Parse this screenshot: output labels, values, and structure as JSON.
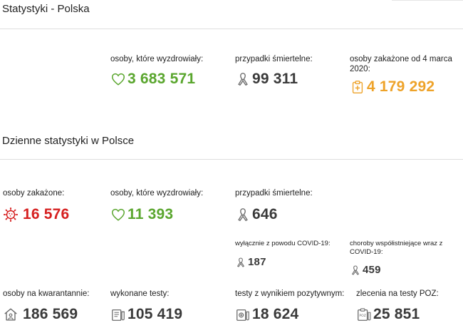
{
  "colors": {
    "green": "#5aa62e",
    "dark": "#3a3a3a",
    "orange": "#eea32a",
    "red": "#d61f1f",
    "gray_icon": "#6c6c6c"
  },
  "poland": {
    "title": "Statystyki - Polska",
    "recovered": {
      "label": "osoby, które wyzdrowiały:",
      "value": "3 683 571",
      "icon": "heart-icon"
    },
    "deaths": {
      "label": "przypadki śmiertelne:",
      "value": "99 311",
      "icon": "ribbon-icon"
    },
    "infected": {
      "label": "osoby zakażone od 4 marca 2020:",
      "value": "4 179 292",
      "icon": "clipboard-medical-icon"
    }
  },
  "daily": {
    "title": "Dzienne statystyki w Polsce",
    "infected": {
      "label": "osoby zakażone:",
      "value": "16 576",
      "icon": "virus-icon"
    },
    "recovered": {
      "label": "osoby, które wyzdrowiały:",
      "value": "11 393",
      "icon": "heart-icon"
    },
    "deaths": {
      "label": "przypadki śmiertelne:",
      "value": "646",
      "icon": "ribbon-icon"
    },
    "covid_only": {
      "label": "wyłącznie z powodu COVID-19:",
      "value": "187",
      "icon": "ribbon-icon"
    },
    "comorbid": {
      "label": "choroby współistniejące wraz z COVID-19:",
      "value": "459",
      "icon": "ribbon-icon"
    },
    "quarantine": {
      "label": "osoby na kwarantannie:",
      "value": "186 569",
      "icon": "house-icon"
    },
    "tests": {
      "label": "wykonane testy:",
      "value": "105 419",
      "icon": "test-tubes-icon"
    },
    "positive_tests": {
      "label": "testy z wynikiem pozytywnym:",
      "value": "18 624",
      "icon": "positive-test-icon"
    },
    "poz_orders": {
      "label": "zlecenia na testy POZ:",
      "value": "25 851",
      "icon": "poz-clipboard-icon"
    }
  }
}
